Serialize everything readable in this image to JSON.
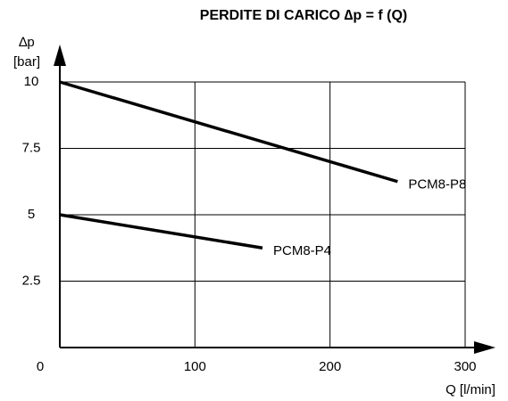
{
  "chart_data": {
    "type": "line",
    "title": "PERDITE DI CARICO ∆p = f (Q)",
    "ylabel": [
      "∆p",
      "[bar]"
    ],
    "xlabel": "Q [l/min]",
    "xlim": [
      0,
      300
    ],
    "ylim": [
      0,
      10
    ],
    "xticks": [
      0,
      100,
      200,
      300
    ],
    "yticks": [
      2.5,
      5,
      7.5,
      10
    ],
    "grid": true,
    "series": [
      {
        "name": "PCM8-P8",
        "color": "#000000",
        "x": [
          0,
          250
        ],
        "values": [
          10,
          6.25
        ]
      },
      {
        "name": "PCM8-P4",
        "color": "#000000",
        "x": [
          0,
          150
        ],
        "values": [
          5,
          3.75
        ]
      }
    ]
  }
}
